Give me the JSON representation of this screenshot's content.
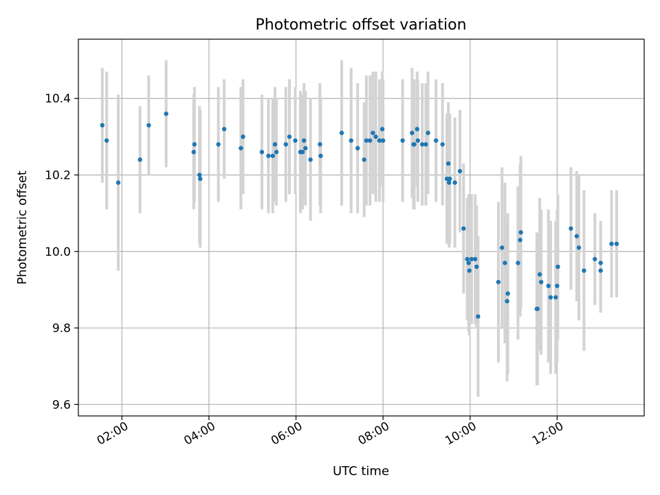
{
  "chart_data": {
    "type": "scatter",
    "title": "Photometric offset variation",
    "xlabel": "UTC time",
    "ylabel": "Photometric offset",
    "x_unit": "hours (UTC)",
    "xlim": [
      "01:00",
      "14:00"
    ],
    "ylim": [
      9.57,
      10.555
    ],
    "x_ticks": [
      "02:00",
      "04:00",
      "06:00",
      "08:00",
      "10:00",
      "12:00"
    ],
    "y_ticks": [
      "9.6",
      "9.8",
      "10.0",
      "10.2",
      "10.4"
    ],
    "grid": true,
    "colors": {
      "point": "#1f77b4",
      "errorbar": "#d3d3d3",
      "grid": "#b0b0b0"
    },
    "series": [
      {
        "points": [
          [
            "01:33",
            10.33,
            0.15
          ],
          [
            "01:39",
            10.29,
            0.18
          ],
          [
            "01:55",
            10.18,
            0.23
          ],
          [
            "02:25",
            10.24,
            0.14
          ],
          [
            "02:37",
            10.33,
            0.13
          ],
          [
            "03:01",
            10.36,
            0.14
          ],
          [
            "03:39",
            10.26,
            0.15
          ],
          [
            "03:40",
            10.28,
            0.15
          ],
          [
            "03:47",
            10.2,
            0.18
          ],
          [
            "03:48",
            10.19,
            0.18
          ],
          [
            "04:13",
            10.28,
            0.15
          ],
          [
            "04:21",
            10.32,
            0.13
          ],
          [
            "04:44",
            10.27,
            0.16
          ],
          [
            "04:47",
            10.3,
            0.15
          ],
          [
            "05:13",
            10.26,
            0.15
          ],
          [
            "05:22",
            10.25,
            0.15
          ],
          [
            "05:28",
            10.25,
            0.15
          ],
          [
            "05:31",
            10.28,
            0.15
          ],
          [
            "05:33",
            10.26,
            0.14
          ],
          [
            "05:46",
            10.28,
            0.15
          ],
          [
            "05:51",
            10.3,
            0.15
          ],
          [
            "05:59",
            10.29,
            0.14
          ],
          [
            "06:06",
            10.26,
            0.16
          ],
          [
            "06:09",
            10.26,
            0.15
          ],
          [
            "06:11",
            10.29,
            0.15
          ],
          [
            "06:13",
            10.27,
            0.15
          ],
          [
            "06:20",
            10.24,
            0.16
          ],
          [
            "06:33",
            10.28,
            0.16
          ],
          [
            "06:34",
            10.25,
            0.15
          ],
          [
            "07:03",
            10.31,
            0.19
          ],
          [
            "07:16",
            10.29,
            0.19
          ],
          [
            "07:25",
            10.27,
            0.17
          ],
          [
            "07:34",
            10.24,
            0.15
          ],
          [
            "07:37",
            10.29,
            0.17
          ],
          [
            "07:42",
            10.29,
            0.17
          ],
          [
            "07:46",
            10.31,
            0.16
          ],
          [
            "07:50",
            10.3,
            0.17
          ],
          [
            "07:55",
            10.29,
            0.16
          ],
          [
            "07:59",
            10.32,
            0.15
          ],
          [
            "08:00",
            10.29,
            0.16
          ],
          [
            "08:27",
            10.29,
            0.16
          ],
          [
            "08:40",
            10.31,
            0.17
          ],
          [
            "08:42",
            10.28,
            0.17
          ],
          [
            "08:43",
            10.28,
            0.17
          ],
          [
            "08:47",
            10.32,
            0.15
          ],
          [
            "08:48",
            10.29,
            0.16
          ],
          [
            "08:54",
            10.28,
            0.16
          ],
          [
            "08:59",
            10.28,
            0.16
          ],
          [
            "09:02",
            10.31,
            0.16
          ],
          [
            "09:13",
            10.29,
            0.16
          ],
          [
            "09:22",
            10.28,
            0.16
          ],
          [
            "09:28",
            10.19,
            0.17
          ],
          [
            "09:30",
            10.23,
            0.16
          ],
          [
            "09:31",
            10.18,
            0.17
          ],
          [
            "09:32",
            10.19,
            0.17
          ],
          [
            "09:39",
            10.18,
            0.17
          ],
          [
            "09:46",
            10.21,
            0.16
          ],
          [
            "09:51",
            10.06,
            0.17
          ],
          [
            "09:56",
            9.98,
            0.16
          ],
          [
            "09:58",
            9.97,
            0.18
          ],
          [
            "09:59",
            9.95,
            0.17
          ],
          [
            "10:02",
            9.98,
            0.17
          ],
          [
            "10:07",
            9.98,
            0.17
          ],
          [
            "10:09",
            9.96,
            0.16
          ],
          [
            "10:11",
            9.83,
            0.21
          ],
          [
            "10:39",
            9.92,
            0.21
          ],
          [
            "10:44",
            10.01,
            0.21
          ],
          [
            "10:48",
            9.97,
            0.21
          ],
          [
            "10:51",
            9.87,
            0.21
          ],
          [
            "10:52",
            9.89,
            0.21
          ],
          [
            "11:06",
            9.97,
            0.2
          ],
          [
            "11:09",
            10.03,
            0.2
          ],
          [
            "11:10",
            10.05,
            0.2
          ],
          [
            "11:32",
            9.85,
            0.2
          ],
          [
            "11:33",
            9.85,
            0.2
          ],
          [
            "11:36",
            9.94,
            0.2
          ],
          [
            "11:38",
            9.92,
            0.19
          ],
          [
            "11:48",
            9.91,
            0.2
          ],
          [
            "11:51",
            9.88,
            0.2
          ],
          [
            "11:58",
            9.88,
            0.2
          ],
          [
            "12:00",
            9.91,
            0.2
          ],
          [
            "12:01",
            9.96,
            0.19
          ],
          [
            "12:19",
            10.06,
            0.16
          ],
          [
            "12:27",
            10.04,
            0.17
          ],
          [
            "12:30",
            10.01,
            0.19
          ],
          [
            "12:37",
            9.95,
            0.21
          ],
          [
            "12:52",
            9.98,
            0.12
          ],
          [
            "13:00",
            9.97,
            0.11
          ],
          [
            "13:00",
            9.95,
            0.11
          ],
          [
            "13:15",
            10.02,
            0.14
          ],
          [
            "13:22",
            10.02,
            0.14
          ]
        ]
      }
    ]
  }
}
